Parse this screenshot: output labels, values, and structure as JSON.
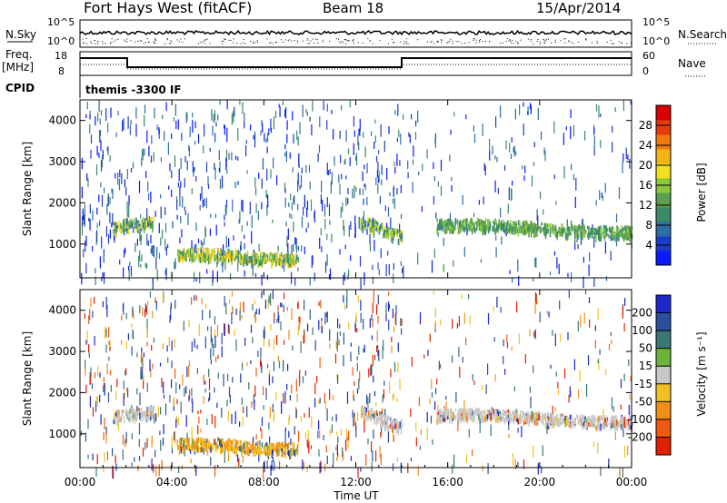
{
  "header": {
    "station": "Fort Hays West (fitACF)",
    "beam": "Beam 18",
    "date": "15/Apr/2014"
  },
  "top_panels": {
    "nsky_label": "N.Sky",
    "nsky_ticks": [
      "10^5",
      "10^0"
    ],
    "nsearch_label": "N.Search",
    "nsearch_ticks": [
      "10^5",
      "10^0"
    ],
    "freq_label": "Freq.",
    "freq_unit": "[MHz]",
    "freq_ticks": [
      "18",
      "8"
    ],
    "nave_label": "Nave",
    "nave_ticks": [
      "60",
      "0"
    ],
    "cpid_label": "CPID",
    "cpid_text": "themis -3300 IF"
  },
  "chart_data": [
    {
      "type": "heatmap",
      "title": "",
      "ylabel": "Slant Range [km]",
      "xlabel": "",
      "xlim": [
        0,
        24
      ],
      "ylim": [
        180,
        4500
      ],
      "y_ticks": [
        1000,
        2000,
        3000,
        4000
      ],
      "x_ticks": [
        "00:00",
        "04:00",
        "08:00",
        "12:00",
        "16:00",
        "20:00",
        "00:00"
      ],
      "colorbar": {
        "label": "Power [dB]",
        "tick_labels": [
          "4",
          "8",
          "12",
          "16",
          "20",
          "24",
          "28"
        ],
        "colors": [
          "#0a1aff",
          "#1a3cc8",
          "#2f6ea4",
          "#3a8a6a",
          "#5aa050",
          "#8cc83a",
          "#f0e020",
          "#f4b416",
          "#f07a10",
          "#e63c0c",
          "#d80000"
        ]
      },
      "echo_bands": [
        {
          "t_start": 1.4,
          "t_end": 3.2,
          "range_start": 1400,
          "range_end": 1620,
          "level": "mid"
        },
        {
          "t_start": 4.2,
          "t_end": 9.5,
          "range_start": 780,
          "range_end": 700,
          "level": "high"
        },
        {
          "t_start": 12.2,
          "t_end": 14.0,
          "range_start": 1550,
          "range_end": 1250,
          "level": "mid"
        },
        {
          "t_start": 15.5,
          "t_end": 24.0,
          "range_start": 1500,
          "range_end": 1350,
          "level": "low"
        }
      ]
    },
    {
      "type": "heatmap",
      "title": "",
      "ylabel": "Slant Range [km]",
      "xlabel": "Time UT",
      "xlim": [
        0,
        24
      ],
      "ylim": [
        180,
        4500
      ],
      "y_ticks": [
        1000,
        2000,
        3000,
        4000
      ],
      "x_ticks": [
        "00:00",
        "04:00",
        "08:00",
        "12:00",
        "16:00",
        "20:00",
        "00:00"
      ],
      "colorbar": {
        "label": "Velocity [m s⁻¹]",
        "tick_labels": [
          "200",
          "100",
          "50",
          "15",
          "-15",
          "-50",
          "-100",
          "-200"
        ],
        "colors": [
          "#1a28c8",
          "#2a50a0",
          "#3a7878",
          "#6ab43c",
          "#c8c8c8",
          "#f0c020",
          "#f09018",
          "#f05a10",
          "#e02000"
        ]
      },
      "echo_bands": [
        {
          "t_start": 1.4,
          "t_end": 3.2,
          "range_start": 1400,
          "range_end": 1620,
          "level": "gray"
        },
        {
          "t_start": 4.2,
          "t_end": 9.5,
          "range_start": 780,
          "range_end": 700,
          "level": "orange"
        },
        {
          "t_start": 12.2,
          "t_end": 14.0,
          "range_start": 1550,
          "range_end": 1250,
          "level": "gray"
        },
        {
          "t_start": 15.5,
          "t_end": 24.0,
          "range_start": 1500,
          "range_end": 1350,
          "level": "gray"
        }
      ]
    }
  ]
}
